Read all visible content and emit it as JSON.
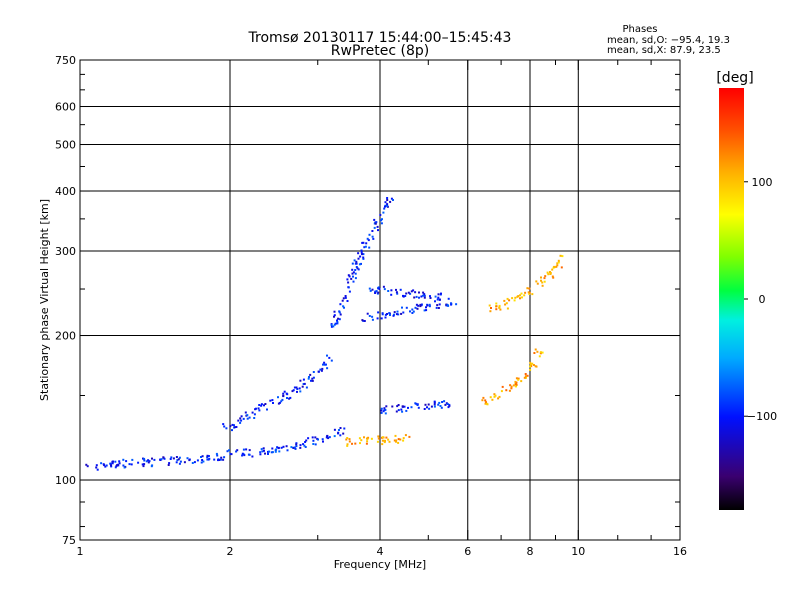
{
  "chart_data": {
    "type": "scatter",
    "title": "Tromsø 20130117 15:44:00–15:45:43",
    "subtitle": "RwPretec (8p)",
    "xlabel": "Frequency [MHz]",
    "ylabel": "Stationary phase Virtual Height [km]",
    "x_scale": "log",
    "y_scale": "log",
    "xlim": [
      1,
      16
    ],
    "ylim": [
      75,
      750
    ],
    "grid": true,
    "x_ticks": [
      "1",
      "2",
      "4",
      "6",
      "8",
      "10",
      "16"
    ],
    "x_tick_values": [
      1,
      2,
      4,
      6,
      8,
      10,
      16
    ],
    "y_ticks": [
      "75",
      "100",
      "200",
      "300",
      "400",
      "500",
      "600",
      "750"
    ],
    "y_tick_values": [
      75,
      100,
      200,
      300,
      400,
      500,
      600,
      750
    ],
    "stats": {
      "heading": "Phases",
      "line1": "mean, sd,O: −95.4, 19.3",
      "line2": "mean, sd,X:  87.9, 23.5"
    },
    "colorbar": {
      "label": "[deg]",
      "range": [
        -180,
        180
      ],
      "ticks": [
        "100",
        "0",
        "−100"
      ],
      "tick_values": [
        100,
        0,
        -100
      ]
    },
    "traces": [
      {
        "x": [
          1.02,
          1.2,
          1.4,
          1.6,
          1.8,
          1.95
        ],
        "y": [
          106,
          108,
          109,
          110,
          111,
          112
        ],
        "phase": -100
      },
      {
        "x": [
          2.0,
          2.2,
          2.5,
          2.8,
          3.1,
          3.4
        ],
        "y": [
          113,
          114,
          116,
          119,
          123,
          127
        ],
        "phase": -95
      },
      {
        "x": [
          1.95,
          2.1,
          2.3,
          2.6,
          2.9,
          3.2
        ],
        "y": [
          128,
          133,
          140,
          150,
          162,
          180
        ],
        "phase": -100
      },
      {
        "x": [
          3.2,
          3.4,
          3.6,
          3.9,
          4.2
        ],
        "y": [
          205,
          240,
          285,
          330,
          390
        ],
        "phase": -100
      },
      {
        "x": [
          4.0,
          4.4,
          4.8,
          5.2,
          5.6
        ],
        "y": [
          140,
          141,
          142,
          143,
          145
        ],
        "phase": -100
      },
      {
        "x": [
          3.7,
          4.2,
          4.8,
          5.3,
          5.7
        ],
        "y": [
          218,
          222,
          228,
          232,
          237
        ],
        "phase": -100
      },
      {
        "x": [
          3.8,
          4.3,
          4.9,
          5.4
        ],
        "y": [
          250,
          246,
          243,
          240
        ],
        "phase": -100
      },
      {
        "x": [
          3.4,
          3.8,
          4.2,
          4.6
        ],
        "y": [
          120,
          121,
          121,
          122
        ],
        "phase": 110
      },
      {
        "x": [
          6.4,
          6.9,
          7.4,
          7.9,
          8.4
        ],
        "y": [
          145,
          150,
          158,
          168,
          185
        ],
        "phase": 110
      },
      {
        "x": [
          6.6,
          7.1,
          7.6,
          8.1,
          8.8,
          9.3
        ],
        "y": [
          225,
          232,
          240,
          250,
          270,
          290
        ],
        "phase": 110
      }
    ]
  }
}
